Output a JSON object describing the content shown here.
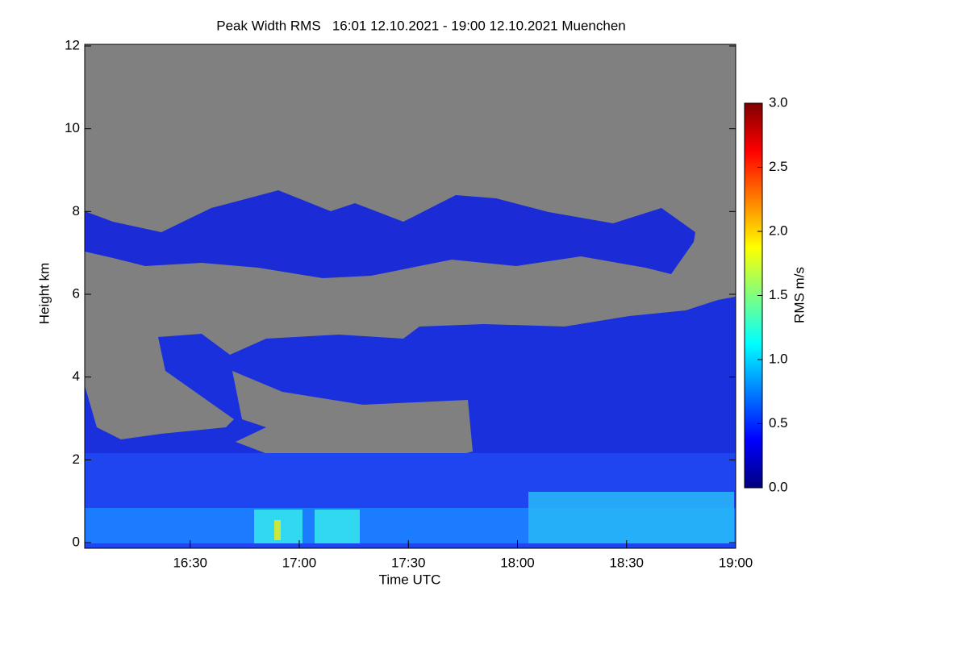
{
  "chart_data": {
    "type": "heatmap",
    "title": "Peak Width RMS   16:01 12.10.2021 - 19:00 12.10.2021 Muenchen",
    "xlabel": "Time UTC",
    "ylabel": "Height km",
    "xlim": [
      961,
      1140
    ],
    "xticks": [
      {
        "value": 990,
        "label": "16:30"
      },
      {
        "value": 1020,
        "label": "17:00"
      },
      {
        "value": 1050,
        "label": "17:30"
      },
      {
        "value": 1080,
        "label": "18:00"
      },
      {
        "value": 1110,
        "label": "18:30"
      },
      {
        "value": 1140,
        "label": "19:00"
      }
    ],
    "ylim": [
      0,
      12
    ],
    "yticks": [
      0,
      2,
      4,
      6,
      8,
      10,
      12
    ],
    "colormap": "jet",
    "colorbar": {
      "label": "RMS m/s",
      "lim": [
        0,
        3
      ],
      "ticks": [
        {
          "value": 0,
          "label": "0.0"
        },
        {
          "value": 0.5,
          "label": "0.5"
        },
        {
          "value": 1,
          "label": "1.0"
        },
        {
          "value": 1.5,
          "label": "1.5"
        },
        {
          "value": 2,
          "label": "2.0"
        },
        {
          "value": 2.5,
          "label": "2.5"
        },
        {
          "value": 3,
          "label": "3.0"
        }
      ]
    }
  }
}
